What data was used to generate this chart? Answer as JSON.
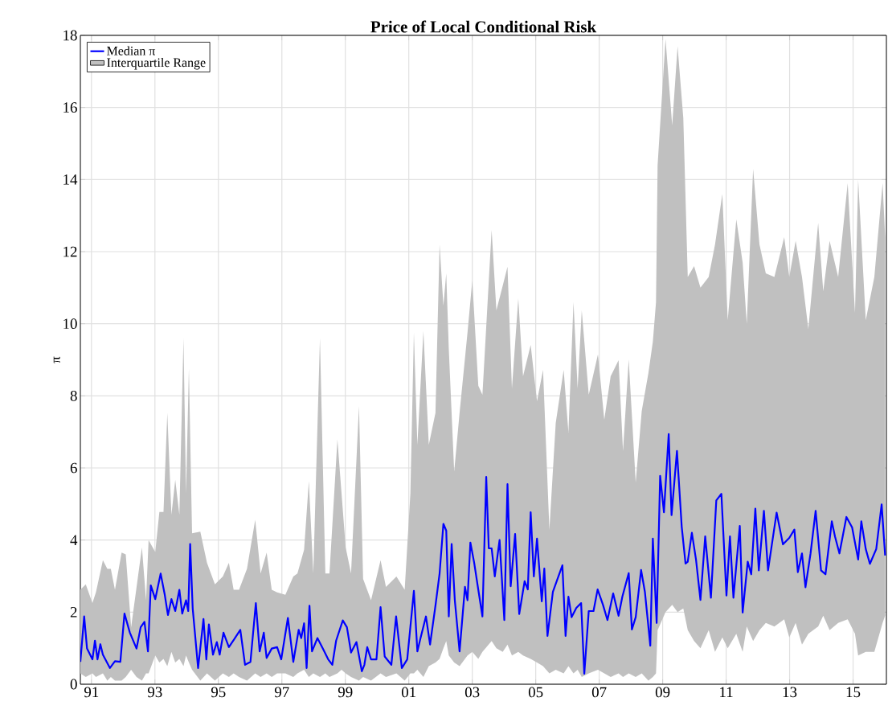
{
  "chart_data": {
    "type": "line",
    "title": "Price of Local Conditional Risk",
    "ylabel": "π",
    "xlim": [
      1990.65,
      2016.05
    ],
    "ylim": [
      0,
      18
    ],
    "xticks": [
      {
        "value": 1991,
        "label": "91"
      },
      {
        "value": 1993,
        "label": "93"
      },
      {
        "value": 1995,
        "label": "95"
      },
      {
        "value": 1997,
        "label": "97"
      },
      {
        "value": 1999,
        "label": "99"
      },
      {
        "value": 2001,
        "label": "01"
      },
      {
        "value": 2003,
        "label": "03"
      },
      {
        "value": 2005,
        "label": "05"
      },
      {
        "value": 2007,
        "label": "07"
      },
      {
        "value": 2009,
        "label": "09"
      },
      {
        "value": 2011,
        "label": "11"
      },
      {
        "value": 2013,
        "label": "13"
      },
      {
        "value": 2015,
        "label": "15"
      }
    ],
    "yticks": [
      0,
      2,
      4,
      6,
      8,
      10,
      12,
      14,
      16,
      18
    ],
    "grid": true,
    "legend": "top left",
    "series": [
      {
        "name": "Median π",
        "color": "#0000ff",
        "x": [
          1990.65,
          1990.77,
          1990.86,
          1991.03,
          1991.11,
          1991.19,
          1991.28,
          1991.36,
          1991.58,
          1991.74,
          1991.91,
          1992.04,
          1992.21,
          1992.42,
          1992.55,
          1992.67,
          1992.78,
          1992.87,
          1993.01,
          1993.18,
          1993.31,
          1993.41,
          1993.52,
          1993.64,
          1993.77,
          1993.86,
          1993.98,
          1994.05,
          1994.11,
          1994.19,
          1994.36,
          1994.53,
          1994.62,
          1994.7,
          1994.83,
          1994.95,
          1995.04,
          1995.16,
          1995.33,
          1995.5,
          1995.69,
          1995.84,
          1996.01,
          1996.18,
          1996.3,
          1996.43,
          1996.52,
          1996.68,
          1996.85,
          1996.98,
          1997.19,
          1997.36,
          1997.53,
          1997.61,
          1997.7,
          1997.78,
          1997.87,
          1997.95,
          1998.12,
          1998.29,
          1998.46,
          1998.59,
          1998.71,
          1998.92,
          1999.05,
          1999.18,
          1999.35,
          1999.52,
          1999.6,
          1999.69,
          1999.81,
          1999.98,
          2000.11,
          2000.24,
          2000.45,
          2000.6,
          2000.78,
          2000.95,
          2001.16,
          2001.27,
          2001.37,
          2001.54,
          2001.67,
          2001.84,
          2001.97,
          2002.09,
          2002.18,
          2002.26,
          2002.35,
          2002.45,
          2002.6,
          2002.77,
          2002.85,
          2002.94,
          2003.06,
          2003.19,
          2003.32,
          2003.44,
          2003.52,
          2003.61,
          2003.71,
          2003.86,
          2004.01,
          2004.11,
          2004.21,
          2004.35,
          2004.48,
          2004.65,
          2004.75,
          2004.84,
          2004.94,
          2005.04,
          2005.19,
          2005.27,
          2005.37,
          2005.54,
          2005.84,
          2005.94,
          2006.03,
          2006.13,
          2006.28,
          2006.43,
          2006.53,
          2006.67,
          2006.82,
          2006.95,
          2007.12,
          2007.26,
          2007.44,
          2007.61,
          2007.73,
          2007.93,
          2008.03,
          2008.15,
          2008.32,
          2008.44,
          2008.61,
          2008.69,
          2008.81,
          2008.92,
          2009.04,
          2009.19,
          2009.28,
          2009.45,
          2009.6,
          2009.72,
          2009.79,
          2009.92,
          2010.05,
          2010.19,
          2010.34,
          2010.52,
          2010.69,
          2010.85,
          2011.01,
          2011.12,
          2011.23,
          2011.43,
          2011.52,
          2011.68,
          2011.79,
          2011.92,
          2012.03,
          2012.19,
          2012.32,
          2012.59,
          2012.79,
          2012.99,
          2013.15,
          2013.26,
          2013.39,
          2013.5,
          2013.66,
          2013.82,
          2013.99,
          2014.13,
          2014.33,
          2014.43,
          2014.57,
          2014.79,
          2014.97,
          2015.16,
          2015.26,
          2015.4,
          2015.53,
          2015.73,
          2015.9,
          2016.01
        ],
        "values": [
          0.62,
          1.88,
          0.99,
          0.69,
          1.21,
          0.69,
          1.11,
          0.82,
          0.45,
          0.64,
          0.62,
          1.96,
          1.43,
          0.99,
          1.58,
          1.73,
          0.91,
          2.74,
          2.36,
          3.07,
          2.48,
          1.92,
          2.36,
          2.03,
          2.62,
          1.96,
          2.33,
          2.03,
          3.89,
          2.1,
          0.45,
          1.81,
          0.69,
          1.66,
          0.82,
          1.17,
          0.82,
          1.43,
          1.03,
          1.25,
          1.51,
          0.54,
          0.62,
          2.25,
          0.91,
          1.43,
          0.73,
          0.99,
          1.03,
          0.69,
          1.84,
          0.62,
          1.51,
          1.28,
          1.69,
          0.45,
          2.18,
          0.91,
          1.28,
          0.99,
          0.69,
          0.54,
          1.21,
          1.77,
          1.58,
          0.88,
          1.17,
          0.36,
          0.54,
          1.03,
          0.69,
          0.69,
          2.14,
          0.77,
          0.54,
          1.88,
          0.45,
          0.69,
          2.59,
          0.91,
          1.28,
          1.88,
          1.1,
          2.18,
          3.07,
          4.45,
          4.26,
          1.88,
          3.89,
          2.33,
          0.91,
          2.7,
          2.33,
          3.93,
          3.37,
          2.62,
          1.88,
          5.75,
          3.77,
          3.77,
          2.99,
          4.0,
          1.78,
          5.55,
          2.72,
          4.17,
          1.95,
          2.86,
          2.63,
          4.77,
          2.99,
          4.04,
          2.3,
          3.21,
          1.34,
          2.56,
          3.3,
          1.34,
          2.43,
          1.86,
          2.12,
          2.25,
          0.29,
          2.03,
          2.03,
          2.63,
          2.2,
          1.78,
          2.52,
          1.9,
          2.43,
          3.08,
          1.52,
          1.86,
          3.17,
          2.56,
          1.07,
          4.04,
          1.7,
          5.78,
          4.77,
          6.94,
          4.69,
          6.47,
          4.37,
          3.35,
          3.4,
          4.2,
          3.46,
          2.34,
          4.1,
          2.4,
          5.1,
          5.28,
          2.46,
          4.1,
          2.4,
          4.39,
          1.99,
          3.4,
          3.05,
          4.87,
          3.16,
          4.81,
          3.16,
          4.76,
          3.88,
          4.06,
          4.29,
          3.11,
          3.63,
          2.69,
          3.63,
          4.81,
          3.16,
          3.05,
          4.52,
          4.1,
          3.63,
          4.64,
          4.35,
          3.46,
          4.52,
          3.75,
          3.34,
          3.75,
          4.99,
          3.57
        ]
      },
      {
        "name": "Interquartile Range",
        "type": "area",
        "color": "#c0c0c0",
        "x": [
          1990.65,
          1990.82,
          1991.03,
          1991.14,
          1991.36,
          1991.5,
          1991.61,
          1991.74,
          1991.95,
          1992.08,
          1992.25,
          1992.42,
          1992.59,
          1992.72,
          1992.8,
          1993.01,
          1993.14,
          1993.27,
          1993.39,
          1993.52,
          1993.64,
          1993.77,
          1993.9,
          1993.98,
          1994.07,
          1994.17,
          1994.43,
          1994.64,
          1994.89,
          1995.14,
          1995.33,
          1995.48,
          1995.65,
          1995.9,
          1996.16,
          1996.33,
          1996.52,
          1996.68,
          1996.85,
          1997.11,
          1997.36,
          1997.49,
          1997.7,
          1997.85,
          1997.99,
          1998.2,
          1998.37,
          1998.5,
          1998.75,
          1998.88,
          1999.01,
          1999.18,
          1999.43,
          1999.56,
          1999.81,
          2000.11,
          2000.28,
          2000.61,
          2000.87,
          2001.05,
          2001.16,
          2001.27,
          2001.46,
          2001.63,
          2001.84,
          2001.97,
          2002.09,
          2002.18,
          2002.26,
          2002.43,
          2002.6,
          2002.85,
          2003.0,
          2003.19,
          2003.32,
          2003.61,
          2003.76,
          2003.96,
          2004.11,
          2004.25,
          2004.45,
          2004.6,
          2004.84,
          2005.04,
          2005.23,
          2005.43,
          2005.63,
          2005.88,
          2006.03,
          2006.19,
          2006.32,
          2006.45,
          2006.67,
          2006.96,
          2007.16,
          2007.36,
          2007.61,
          2007.75,
          2007.93,
          2008.15,
          2008.34,
          2008.55,
          2008.69,
          2008.79,
          2008.84,
          2009.09,
          2009.3,
          2009.47,
          2009.65,
          2009.79,
          2009.99,
          2010.19,
          2010.45,
          2010.65,
          2010.88,
          2011.05,
          2011.32,
          2011.52,
          2011.65,
          2011.85,
          2012.05,
          2012.25,
          2012.52,
          2012.83,
          2012.99,
          2013.19,
          2013.39,
          2013.59,
          2013.9,
          2014.06,
          2014.26,
          2014.53,
          2014.83,
          2015.06,
          2015.16,
          2015.4,
          2015.67,
          2015.93,
          2016.01
        ],
        "lower": [
          0.3,
          0.2,
          0.3,
          0.2,
          0.3,
          0.1,
          0.2,
          0.1,
          0.1,
          0.2,
          0.4,
          0.2,
          0.1,
          0.3,
          0.3,
          0.8,
          0.6,
          0.7,
          0.5,
          0.9,
          0.6,
          0.7,
          0.5,
          0.8,
          0.6,
          0.4,
          0.1,
          0.3,
          0.1,
          0.3,
          0.2,
          0.3,
          0.2,
          0.1,
          0.3,
          0.2,
          0.3,
          0.2,
          0.3,
          0.3,
          0.2,
          0.3,
          0.4,
          0.2,
          0.3,
          0.2,
          0.3,
          0.2,
          0.3,
          0.4,
          0.3,
          0.2,
          0.1,
          0.2,
          0.1,
          0.3,
          0.2,
          0.3,
          0.1,
          0.3,
          0.3,
          0.4,
          0.2,
          0.5,
          0.6,
          0.7,
          1.0,
          1.2,
          0.8,
          0.6,
          0.5,
          0.8,
          0.9,
          0.7,
          0.9,
          1.2,
          1.0,
          0.9,
          1.1,
          0.8,
          0.9,
          0.8,
          0.7,
          0.6,
          0.5,
          0.3,
          0.4,
          0.3,
          0.5,
          0.3,
          0.4,
          0.2,
          0.3,
          0.4,
          0.3,
          0.2,
          0.3,
          0.2,
          0.3,
          0.2,
          0.3,
          0.1,
          0.2,
          0.3,
          1.5,
          2.0,
          2.2,
          2.0,
          2.1,
          1.5,
          1.2,
          1.0,
          1.5,
          0.9,
          1.3,
          1.0,
          1.4,
          0.9,
          1.6,
          1.2,
          1.5,
          1.7,
          1.6,
          1.8,
          1.3,
          1.7,
          1.1,
          1.4,
          1.6,
          1.9,
          1.5,
          1.7,
          1.8,
          1.4,
          0.8,
          0.9,
          0.9,
          1.7,
          1.9
        ],
        "values": [
          null,
          null,
          null,
          null,
          null,
          null,
          null,
          null,
          null,
          null,
          null,
          null,
          null,
          null,
          null,
          null,
          null,
          null,
          null,
          null,
          null,
          null,
          null,
          null,
          null,
          null,
          null,
          null,
          null,
          null,
          null,
          null,
          null,
          null,
          null,
          null,
          null,
          null,
          null,
          null,
          null,
          null,
          null,
          null,
          null,
          null,
          null,
          null,
          null,
          null,
          null,
          null,
          null,
          null,
          null,
          null,
          null,
          null,
          null,
          null,
          null,
          null,
          null,
          null,
          null,
          null,
          null,
          null,
          null,
          null,
          null,
          null,
          null,
          null,
          null,
          null,
          null,
          null,
          null,
          null,
          null,
          null,
          null,
          null,
          null,
          null,
          null,
          null,
          null,
          null,
          null,
          null,
          null,
          null,
          null,
          null,
          null,
          null,
          null,
          null,
          null,
          null,
          null,
          null,
          null,
          null,
          null,
          null,
          null,
          null,
          null,
          null,
          null,
          null,
          null,
          null,
          null,
          null,
          null,
          null,
          null,
          null,
          null,
          null,
          null,
          null,
          null,
          null,
          null,
          null,
          null,
          null,
          null,
          null,
          null,
          null,
          null,
          null,
          null
        ],
        "upper": [
          2.62,
          2.77,
          2.25,
          2.55,
          3.44,
          3.2,
          3.2,
          2.62,
          3.65,
          3.6,
          1.58,
          2.69,
          3.8,
          2.33,
          4.0,
          3.67,
          4.78,
          4.78,
          7.53,
          4.7,
          5.67,
          4.7,
          9.61,
          5.3,
          8.76,
          4.19,
          4.23,
          3.37,
          2.77,
          2.99,
          3.37,
          2.62,
          2.62,
          3.2,
          4.56,
          3.07,
          3.65,
          2.62,
          2.55,
          2.48,
          2.99,
          3.07,
          3.73,
          5.64,
          3.07,
          9.61,
          3.07,
          3.07,
          6.79,
          5.3,
          3.8,
          3.07,
          7.72,
          2.92,
          2.33,
          3.44,
          2.7,
          2.99,
          2.62,
          5.3,
          9.76,
          6.64,
          9.8,
          6.64,
          7.53,
          12.2,
          10.5,
          11.4,
          9.3,
          5.9,
          7.53,
          9.76,
          11.2,
          8.28,
          8.03,
          12.6,
          10.37,
          11.06,
          11.58,
          8.2,
          10.7,
          8.54,
          9.41,
          7.85,
          8.72,
          4.28,
          7.25,
          8.72,
          6.98,
          10.6,
          8.2,
          10.37,
          8.03,
          9.15,
          7.34,
          8.54,
          8.99,
          6.47,
          9.01,
          5.6,
          7.58,
          8.63,
          9.5,
          10.6,
          14.4,
          17.9,
          15.5,
          17.7,
          15.7,
          11.3,
          11.6,
          11.0,
          11.3,
          12.2,
          13.6,
          10.1,
          12.9,
          11.7,
          10.0,
          14.3,
          12.2,
          11.4,
          11.3,
          12.4,
          11.3,
          12.3,
          11.3,
          9.86,
          12.8,
          10.9,
          12.3,
          11.3,
          13.9,
          10.3,
          14.0,
          10.1,
          11.3,
          13.9,
          12.4
        ]
      }
    ]
  }
}
